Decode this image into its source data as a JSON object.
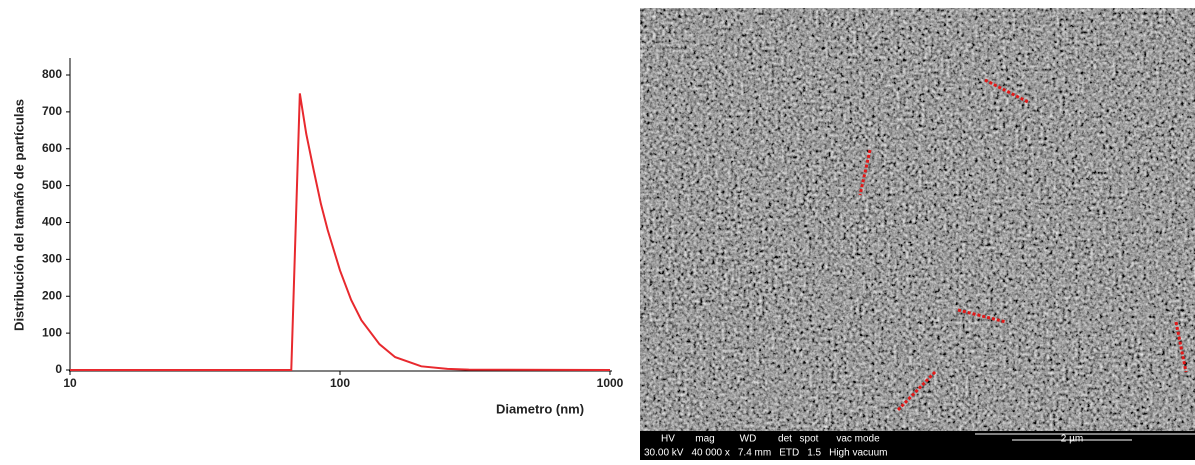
{
  "chart_data": {
    "type": "line",
    "xlabel": "Diametro (nm)",
    "ylabel": "Distribución del tamaño de partículas",
    "x": [
      10,
      65,
      66,
      71,
      75,
      80,
      85,
      90,
      100,
      110,
      120,
      140,
      160,
      200,
      250,
      300,
      1000
    ],
    "series": [
      {
        "color": "#e8292e",
        "values": [
          0,
          0,
          0,
          750,
          640,
          540,
          450,
          380,
          270,
          190,
          135,
          70,
          35,
          10,
          3,
          1,
          0
        ]
      }
    ],
    "xlim": [
      10,
      1000
    ],
    "xticks": [
      10,
      100,
      1000
    ],
    "log_x": true,
    "ylim": [
      0,
      800
    ],
    "yticks": [
      0,
      100,
      200,
      300,
      400,
      500,
      600,
      700,
      800
    ],
    "grid": false
  },
  "micrograph": {
    "labels": [
      "HV",
      "mag",
      "WD",
      "det",
      "spot",
      "vac mode"
    ],
    "values": [
      "30.00 kV",
      "40 000 x",
      "7.4 mm",
      "ETD",
      "1.5",
      "High vacuum"
    ],
    "scale_bar": "2 µm"
  }
}
